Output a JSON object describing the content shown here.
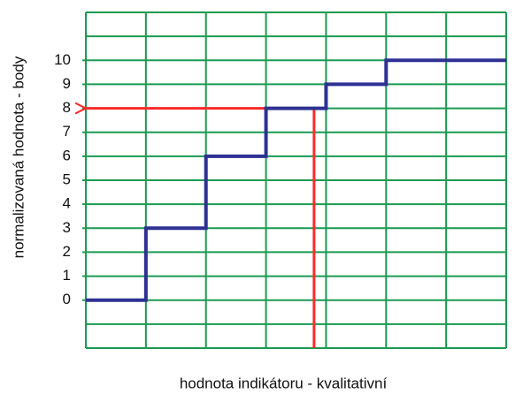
{
  "chart_data": {
    "type": "line",
    "xlabel": "hodnota indikátoru - kvalitativní",
    "ylabel": "normalizovaná hodnota - body",
    "x": [
      0,
      1,
      1,
      2,
      2,
      3,
      3,
      4,
      4,
      5,
      5,
      7
    ],
    "series": [
      {
        "color": "#2e3192",
        "values": [
          0,
          0,
          3,
          3,
          6,
          6,
          8,
          8,
          9,
          9,
          10,
          10
        ]
      }
    ],
    "arrow": {
      "color": "#ff2a2a",
      "x": [
        3.8,
        3.8,
        0
      ],
      "y": [
        -2,
        8,
        8
      ]
    },
    "xlim": [
      0,
      7
    ],
    "ylim": [
      -2,
      12
    ],
    "yticks": [
      0,
      1,
      2,
      3,
      4,
      5,
      6,
      7,
      8,
      9,
      10
    ],
    "grid": true,
    "grid_color": "#1a9a50"
  }
}
